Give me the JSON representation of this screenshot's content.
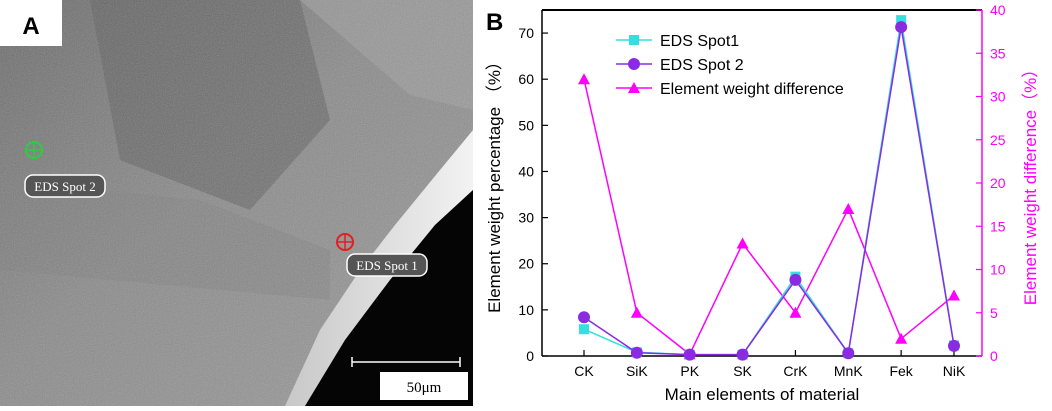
{
  "panel_a": {
    "label": "A",
    "spot_labels": [
      "EDS Spot 2",
      "EDS Spot 1"
    ],
    "scale_bar": "50μm",
    "colors": {
      "spot2": "#2ecc40",
      "spot1": "#e02020"
    }
  },
  "panel_b": {
    "label": "B"
  },
  "chart_data": {
    "type": "line",
    "categories": [
      "CK",
      "SiK",
      "PK",
      "SK",
      "CrK",
      "MnK",
      "Fek",
      "NiK"
    ],
    "xlabel": "Main elements of material",
    "ylabel": "Element weight percentage （%）",
    "y2label": "Element weight difference（%）",
    "ylim": [
      0,
      75
    ],
    "y2lim": [
      0,
      40
    ],
    "yticks": [
      0,
      10,
      20,
      30,
      40,
      50,
      60,
      70
    ],
    "y2ticks": [
      0,
      5,
      10,
      15,
      20,
      25,
      30,
      35,
      40
    ],
    "legend_position": "top-left",
    "grid": false,
    "series": [
      {
        "name": "EDS Spot1",
        "axis": "left",
        "marker": "square",
        "color": "#33e0e0",
        "values": [
          5.8,
          0.8,
          0.3,
          0.3,
          17.2,
          0.6,
          72.8,
          2.3
        ]
      },
      {
        "name": "EDS Spot 2",
        "axis": "left",
        "marker": "circle",
        "color": "#8a2be2",
        "values": [
          8.4,
          0.7,
          0.3,
          0.3,
          16.5,
          0.6,
          71.3,
          2.2
        ]
      },
      {
        "name": "Element weight difference",
        "axis": "right",
        "marker": "triangle",
        "color": "#ff00ff",
        "values": [
          32,
          5,
          0.2,
          13,
          5,
          17,
          2,
          7
        ]
      }
    ]
  }
}
